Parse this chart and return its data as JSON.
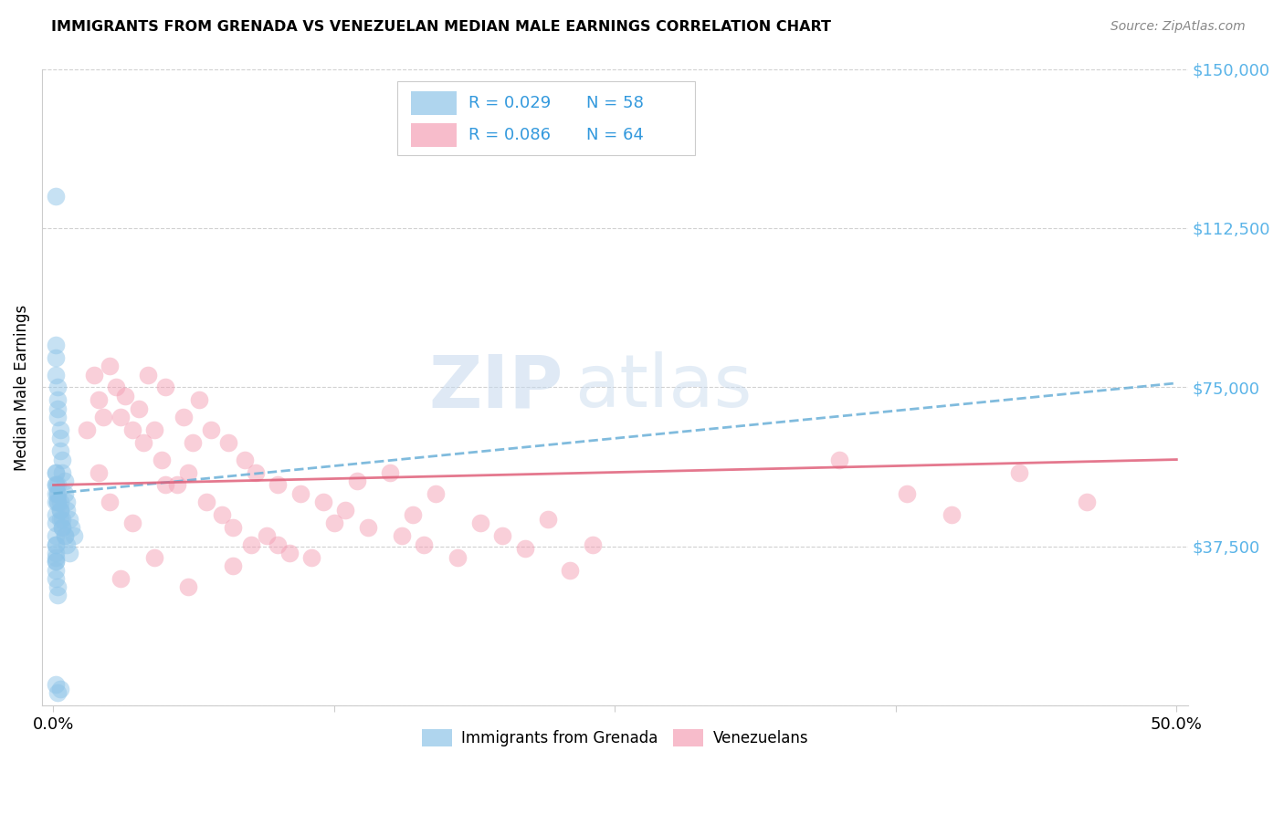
{
  "title": "IMMIGRANTS FROM GRENADA VS VENEZUELAN MEDIAN MALE EARNINGS CORRELATION CHART",
  "source": "Source: ZipAtlas.com",
  "ylabel": "Median Male Earnings",
  "yticks": [
    0,
    37500,
    75000,
    112500,
    150000
  ],
  "ytick_labels": [
    "",
    "$37,500",
    "$75,000",
    "$112,500",
    "$150,000"
  ],
  "xlim": [
    -0.005,
    0.505
  ],
  "ylim": [
    0,
    150000
  ],
  "xtick_positions": [
    0.0,
    0.125,
    0.25,
    0.375,
    0.5
  ],
  "xtick_labels": [
    "0.0%",
    "",
    "",
    "",
    "50.0%"
  ],
  "legend_label1": "Immigrants from Grenada",
  "legend_label2": "Venezuelans",
  "R1": 0.029,
  "N1": 58,
  "R2": 0.086,
  "N2": 64,
  "color_blue": "#8ec4e8",
  "color_pink": "#f4a0b5",
  "color_blue_line": "#6ab0d8",
  "color_pink_line": "#e0607a",
  "watermark_zip": "ZIP",
  "watermark_atlas": "atlas",
  "grenada_x": [
    0.001,
    0.001,
    0.001,
    0.001,
    0.002,
    0.002,
    0.002,
    0.002,
    0.003,
    0.003,
    0.003,
    0.004,
    0.004,
    0.005,
    0.005,
    0.006,
    0.006,
    0.007,
    0.008,
    0.009,
    0.001,
    0.001,
    0.001,
    0.002,
    0.002,
    0.003,
    0.003,
    0.004,
    0.004,
    0.005,
    0.001,
    0.001,
    0.002,
    0.002,
    0.003,
    0.003,
    0.004,
    0.005,
    0.006,
    0.007,
    0.001,
    0.001,
    0.001,
    0.002,
    0.002,
    0.001,
    0.001,
    0.002,
    0.001,
    0.001,
    0.001,
    0.001,
    0.001,
    0.001,
    0.002,
    0.003,
    0.001,
    0.001
  ],
  "grenada_y": [
    120000,
    85000,
    82000,
    78000,
    75000,
    72000,
    70000,
    68000,
    65000,
    63000,
    60000,
    58000,
    55000,
    53000,
    50000,
    48000,
    46000,
    44000,
    42000,
    40000,
    38000,
    36000,
    34000,
    52000,
    50000,
    48000,
    46000,
    44000,
    42000,
    40000,
    55000,
    52000,
    50000,
    48000,
    46000,
    44000,
    42000,
    40000,
    38000,
    36000,
    34000,
    32000,
    30000,
    28000,
    26000,
    55000,
    50000,
    48000,
    45000,
    43000,
    40000,
    38000,
    35000,
    5000,
    3000,
    4000,
    48000,
    52000
  ],
  "venezuela_x": [
    0.015,
    0.018,
    0.02,
    0.022,
    0.025,
    0.028,
    0.03,
    0.032,
    0.035,
    0.038,
    0.04,
    0.042,
    0.045,
    0.048,
    0.05,
    0.055,
    0.058,
    0.06,
    0.062,
    0.065,
    0.068,
    0.07,
    0.075,
    0.078,
    0.08,
    0.085,
    0.088,
    0.09,
    0.095,
    0.1,
    0.105,
    0.11,
    0.115,
    0.12,
    0.125,
    0.13,
    0.135,
    0.14,
    0.15,
    0.155,
    0.16,
    0.165,
    0.17,
    0.18,
    0.19,
    0.2,
    0.21,
    0.22,
    0.23,
    0.24,
    0.35,
    0.38,
    0.4,
    0.43,
    0.46,
    0.03,
    0.045,
    0.06,
    0.08,
    0.1,
    0.02,
    0.025,
    0.035,
    0.05
  ],
  "venezuela_y": [
    65000,
    78000,
    72000,
    68000,
    80000,
    75000,
    68000,
    73000,
    65000,
    70000,
    62000,
    78000,
    65000,
    58000,
    75000,
    52000,
    68000,
    55000,
    62000,
    72000,
    48000,
    65000,
    45000,
    62000,
    42000,
    58000,
    38000,
    55000,
    40000,
    52000,
    36000,
    50000,
    35000,
    48000,
    43000,
    46000,
    53000,
    42000,
    55000,
    40000,
    45000,
    38000,
    50000,
    35000,
    43000,
    40000,
    37000,
    44000,
    32000,
    38000,
    58000,
    50000,
    45000,
    55000,
    48000,
    30000,
    35000,
    28000,
    33000,
    38000,
    55000,
    48000,
    43000,
    52000
  ],
  "blue_line_x0": 0.0,
  "blue_line_x1": 0.5,
  "blue_line_y0": 50000,
  "blue_line_y1": 76000,
  "pink_line_x0": 0.0,
  "pink_line_x1": 0.5,
  "pink_line_y0": 52000,
  "pink_line_y1": 58000
}
